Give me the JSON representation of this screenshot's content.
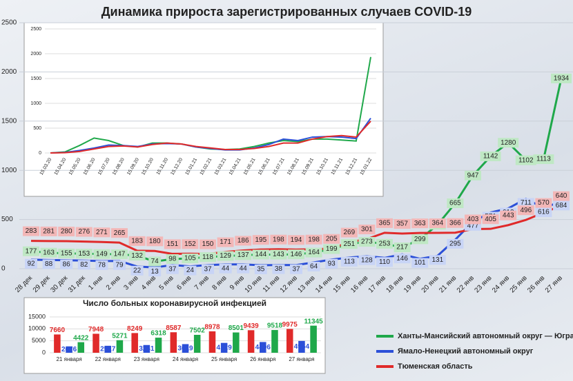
{
  "chart_data": [
    {
      "type": "line",
      "title": "Динамика прироста зарегистрированных случаев COVID-19",
      "categories": [
        "28 дек",
        "29 дек",
        "30 дек",
        "31 дек",
        "1 янв",
        "2 янв",
        "3 янв",
        "4 янв",
        "5 янв",
        "6 янв",
        "7 янв",
        "8 янв",
        "9 янв",
        "10 янв",
        "11 янв",
        "12 янв",
        "13 янв",
        "14 янв",
        "15 янв",
        "16 янв",
        "17 янв",
        "18 янв",
        "19 янв",
        "20 янв",
        "21 янв",
        "22 янв",
        "23 янв",
        "24 янв",
        "25 янв",
        "26 янв",
        "27 янв"
      ],
      "series": [
        {
          "name": "Ханты-Мансийский автономный округ — Югра",
          "color": "#1fa84a",
          "values": [
            177,
            163,
            155,
            153,
            149,
            147,
            132,
            74,
            98,
            105,
            118,
            129,
            137,
            144,
            143,
            146,
            164,
            199,
            251,
            273,
            253,
            217,
            299,
            447,
            665,
            947,
            1142,
            1280,
            1102,
            1113,
            1934
          ]
        },
        {
          "name": "Ямало-Ненецкий автономный округ",
          "color": "#2b4fd8",
          "values": [
            92,
            88,
            86,
            82,
            78,
            79,
            22,
            13,
            37,
            24,
            37,
            44,
            44,
            35,
            38,
            37,
            64,
            93,
            113,
            128,
            110,
            146,
            101,
            131,
            295,
            477,
            571,
            613,
            711,
            616,
            684
          ]
        },
        {
          "name": "Тюменская область",
          "color": "#e02a2a",
          "values": [
            283,
            281,
            280,
            276,
            271,
            265,
            183,
            180,
            151,
            152,
            150,
            171,
            186,
            195,
            198,
            194,
            198,
            205,
            269,
            301,
            365,
            357,
            363,
            364,
            366,
            403,
            405,
            443,
            496,
            570,
            640
          ]
        }
      ],
      "ylim": [
        0,
        2500
      ],
      "yticks": [
        0,
        500,
        1000,
        1500,
        2000,
        2500
      ],
      "grid": true,
      "legend": "bottom-right"
    },
    {
      "type": "line",
      "categories": [
        "15.03.20",
        "15.04.20",
        "15.05.20",
        "15.06.20",
        "15.07.20",
        "15.08.20",
        "15.09.20",
        "15.10.20",
        "15.11.20",
        "15.12.20",
        "15.01.21",
        "15.02.21",
        "15.03.21",
        "15.04.21",
        "15.05.21",
        "15.06.21",
        "15.07.21",
        "15.08.21",
        "15.09.21",
        "15.10.21",
        "15.11.21",
        "15.12.21",
        "15.01.22"
      ],
      "series": [
        {
          "color": "#1fa84a",
          "values": [
            0,
            20,
            150,
            300,
            250,
            150,
            120,
            200,
            200,
            180,
            120,
            80,
            70,
            80,
            130,
            200,
            250,
            230,
            280,
            280,
            260,
            240,
            1934
          ]
        },
        {
          "color": "#2b4fd8",
          "values": [
            0,
            10,
            50,
            100,
            160,
            150,
            130,
            180,
            190,
            180,
            120,
            90,
            60,
            60,
            100,
            170,
            280,
            250,
            320,
            330,
            320,
            290,
            700
          ]
        },
        {
          "color": "#e02a2a",
          "values": [
            0,
            5,
            30,
            80,
            130,
            140,
            120,
            170,
            200,
            180,
            130,
            100,
            70,
            70,
            90,
            130,
            200,
            200,
            280,
            330,
            350,
            320,
            640
          ]
        }
      ],
      "ylim": [
        0,
        2500
      ],
      "yticks": [
        0,
        500,
        1000,
        1500,
        2000,
        2500
      ],
      "grid": true
    },
    {
      "type": "bar",
      "title": "Число больных коронавирусной инфекцией",
      "categories": [
        "21 января",
        "22 января",
        "23 января",
        "24 января",
        "25 января",
        "26 января",
        "27 января"
      ],
      "series": [
        {
          "color": "#e02a2a",
          "values": [
            7660,
            7948,
            8249,
            8587,
            8978,
            9439,
            9975
          ]
        },
        {
          "color": "#2b4fd8",
          "values": [
            2676,
            2917,
            3241,
            3619,
            4129,
            4496,
            4954
          ]
        },
        {
          "color": "#1fa84a",
          "values": [
            4422,
            5271,
            6318,
            7502,
            8501,
            9518,
            11345
          ]
        }
      ],
      "ylim": [
        0,
        15000
      ],
      "yticks": [
        0,
        5000,
        10000,
        15000
      ],
      "grid": true
    }
  ]
}
